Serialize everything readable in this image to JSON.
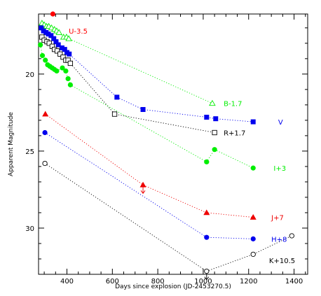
{
  "chart_data": {
    "type": "scatter",
    "xlabel": "Days since explosion (JD-2453270.5)",
    "ylabel": "Apparent Magnitude",
    "xlim": [
      275,
      1460
    ],
    "ylim": [
      33.0,
      16.1
    ],
    "y_inverted": true,
    "x_ticks": [
      400,
      600,
      800,
      1000,
      1200,
      1400
    ],
    "y_ticks": [
      20,
      25,
      30
    ],
    "series": [
      {
        "name": "U-3.5",
        "color": "#ff0000",
        "marker": "circle-filled",
        "line": false,
        "points": [
          [
            338,
            16.1
          ]
        ]
      },
      {
        "name": "B-1.7",
        "color": "#00ee00",
        "marker": "triangle-open",
        "line": true,
        "points": [
          [
            290,
            16.7
          ],
          [
            300,
            16.8
          ],
          [
            310,
            16.9
          ],
          [
            320,
            16.9
          ],
          [
            332,
            17.0
          ],
          [
            345,
            17.1
          ],
          [
            355,
            17.2
          ],
          [
            365,
            17.3
          ],
          [
            385,
            17.6
          ],
          [
            398,
            17.6
          ],
          [
            408,
            17.7
          ],
          [
            1040,
            21.9
          ]
        ]
      },
      {
        "name": "V",
        "color": "#0000ee",
        "marker": "square-filled",
        "line": true,
        "points": [
          [
            287,
            17.0
          ],
          [
            297,
            17.2
          ],
          [
            308,
            17.3
          ],
          [
            318,
            17.4
          ],
          [
            330,
            17.5
          ],
          [
            342,
            17.7
          ],
          [
            352,
            17.9
          ],
          [
            362,
            18.1
          ],
          [
            378,
            18.3
          ],
          [
            390,
            18.4
          ],
          [
            400,
            18.6
          ],
          [
            410,
            18.7
          ],
          [
            620,
            21.5
          ],
          [
            735,
            22.3
          ],
          [
            1015,
            22.8
          ],
          [
            1055,
            22.9
          ],
          [
            1220,
            23.1
          ]
        ]
      },
      {
        "name": "R+1.7",
        "color": "#000000",
        "marker": "square-open",
        "line": true,
        "points": [
          [
            290,
            17.6
          ],
          [
            300,
            17.8
          ],
          [
            312,
            17.9
          ],
          [
            322,
            18.0
          ],
          [
            335,
            18.2
          ],
          [
            345,
            18.4
          ],
          [
            357,
            18.5
          ],
          [
            370,
            18.7
          ],
          [
            383,
            18.9
          ],
          [
            395,
            19.1
          ],
          [
            405,
            19.1
          ],
          [
            415,
            19.3
          ],
          [
            610,
            22.6
          ],
          [
            1050,
            23.8
          ]
        ]
      },
      {
        "name": "I+3",
        "color": "#00ee00",
        "marker": "circle-filled",
        "line": true,
        "points": [
          [
            283,
            18.1
          ],
          [
            292,
            18.8
          ],
          [
            305,
            19.1
          ],
          [
            315,
            19.4
          ],
          [
            325,
            19.5
          ],
          [
            335,
            19.6
          ],
          [
            345,
            19.7
          ],
          [
            355,
            19.8
          ],
          [
            380,
            19.6
          ],
          [
            395,
            19.8
          ],
          [
            405,
            20.3
          ],
          [
            415,
            20.7
          ],
          [
            1015,
            25.7
          ],
          [
            1050,
            24.9
          ],
          [
            1220,
            26.1
          ]
        ]
      },
      {
        "name": "J+7",
        "color": "#ee0000",
        "marker": "triangle-filled",
        "line": true,
        "points": [
          [
            305,
            22.6
          ],
          [
            735,
            27.2
          ],
          [
            1015,
            29.0
          ],
          [
            1220,
            29.3
          ]
        ]
      },
      {
        "name": "H+8",
        "color": "#0000ee",
        "marker": "circle-filled",
        "line": true,
        "points": [
          [
            303,
            23.8
          ],
          [
            1015,
            30.6
          ],
          [
            1220,
            30.7
          ]
        ]
      },
      {
        "name": "K+10.5",
        "color": "#000000",
        "marker": "circle-open",
        "line": true,
        "points": [
          [
            303,
            25.8
          ],
          [
            1015,
            32.8
          ],
          [
            1220,
            31.7
          ],
          [
            1390,
            30.5
          ]
        ]
      }
    ],
    "upper_limits": [
      {
        "series": "J+7",
        "x": 735,
        "y": 27.2,
        "color": "#ee0000"
      },
      {
        "series": "K+10.5",
        "x": 1015,
        "y": 32.8,
        "color": "#000000"
      }
    ],
    "annotations": [
      {
        "text": "U-3.5",
        "color": "#ff0000",
        "x": 408,
        "y": 17.2
      },
      {
        "text": "B-1.7",
        "color": "#00ee00",
        "x": 1090,
        "y": 21.9
      },
      {
        "text": "V",
        "color": "#0000ee",
        "x": 1330,
        "y": 23.1
      },
      {
        "text": "R+1.7",
        "color": "#000000",
        "x": 1090,
        "y": 23.8
      },
      {
        "text": "I+3",
        "color": "#00ee00",
        "x": 1310,
        "y": 26.1
      },
      {
        "text": "J+7",
        "color": "#ee0000",
        "x": 1300,
        "y": 29.3
      },
      {
        "text": "H+8",
        "color": "#0000ee",
        "x": 1300,
        "y": 30.7
      },
      {
        "text": "K+10.5",
        "color": "#000000",
        "x": 1290,
        "y": 32.1
      }
    ],
    "grid": false
  }
}
